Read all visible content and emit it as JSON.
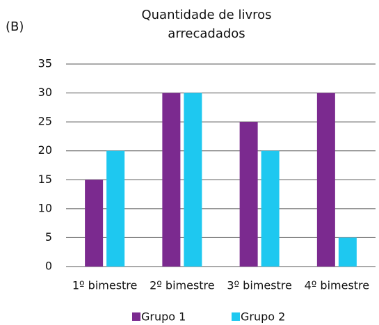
{
  "chart_data": {
    "type": "bar",
    "panel_label": "(B)",
    "title": "Quantidade de livros arrecadados",
    "categories": [
      "1º bimestre",
      "2º bimestre",
      "3º bimestre",
      "4º bimestre"
    ],
    "series": [
      {
        "name": "Grupo 1",
        "color": "#7b2a8f",
        "values": [
          15,
          30,
          25,
          30
        ]
      },
      {
        "name": "Grupo 2",
        "color": "#1ec8f0",
        "values": [
          20,
          30,
          20,
          5
        ]
      }
    ],
    "ylim": [
      0,
      35
    ],
    "yticks": [
      0,
      5,
      10,
      15,
      20,
      25,
      30,
      35
    ],
    "grid": true,
    "legend": "bottom"
  }
}
